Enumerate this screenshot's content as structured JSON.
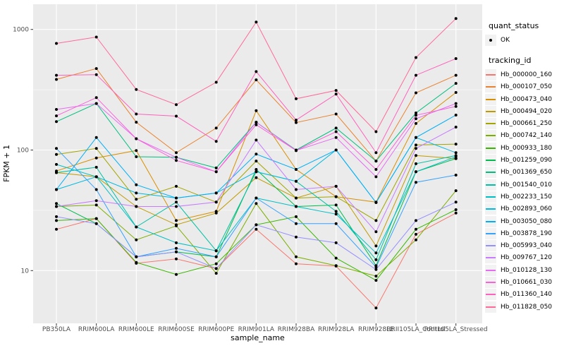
{
  "chart_data": {
    "type": "line",
    "title": "",
    "xlabel": "sample_name",
    "ylabel": "FPKM + 1",
    "y_scale": "log10",
    "ylim": [
      4,
      1400
    ],
    "grid": "on",
    "legend_position": "right",
    "y_ticks": [
      1000,
      100,
      10
    ],
    "y_minor_ticks": [
      316.23,
      31.62
    ],
    "categories": [
      "PB350LA",
      "RRIM600LA",
      "RRIM600LE",
      "RRIM600SE",
      "RRIM600PE",
      "RRIM901LA",
      "RRIM928BA",
      "RRIM928LA",
      "RRIM928LE",
      "RRII105LA_Control",
      "RRII105LA_Stressed"
    ],
    "legend": {
      "quant_status_title": "quant_status",
      "quant_status_value": "OK",
      "tracking_id_title": "tracking_id"
    },
    "colors": {
      "panel_bg": "#EBEBEB",
      "grid": "#FFFFFF",
      "point": "#000000",
      "tick_text": "#4D4D4D",
      "legend_key_bg": "#F2F2F2"
    },
    "series": [
      {
        "name": "Hb_000000_160",
        "color": "#F8766D",
        "values": [
          22,
          27,
          11.5,
          12.5,
          10.4,
          22,
          11.4,
          10.9,
          4.9,
          20,
          30
        ]
      },
      {
        "name": "Hb_000107_050",
        "color": "#EA8331",
        "values": [
          385,
          474,
          170,
          95,
          152,
          382,
          169,
          199,
          81,
          298,
          417
        ]
      },
      {
        "name": "Hb_000473_040",
        "color": "#D89000",
        "values": [
          67,
          86,
          99,
          26,
          31,
          212,
          69,
          41,
          37,
          166,
          300
        ]
      },
      {
        "name": "Hb_000494_020",
        "color": "#C09B00",
        "values": [
          65,
          60,
          34,
          24,
          30,
          59,
          40,
          50,
          16,
          90,
          85
        ]
      },
      {
        "name": "Hb_000661_250",
        "color": "#A3A500",
        "values": [
          92,
          103,
          39,
          50,
          37,
          81,
          40,
          41,
          26,
          110,
          112
        ]
      },
      {
        "name": "Hb_000742_140",
        "color": "#7CAE00",
        "values": [
          34,
          35,
          18,
          23.5,
          9.5,
          36,
          13,
          11,
          9,
          18,
          46
        ]
      },
      {
        "name": "Hb_000933_180",
        "color": "#39B600",
        "values": [
          26,
          27,
          11.7,
          9.3,
          11.4,
          24,
          28,
          12.7,
          8.3,
          22,
          32
        ]
      },
      {
        "name": "Hb_001259_090",
        "color": "#00BB4E",
        "values": [
          36,
          24.5,
          13,
          14.3,
          13,
          69,
          34,
          35,
          11,
          66,
          85
        ]
      },
      {
        "name": "Hb_001369_650",
        "color": "#00BF7D",
        "values": [
          172,
          243,
          88,
          87,
          71,
          170,
          100,
          152,
          81,
          203,
          357
        ]
      },
      {
        "name": "Hb_001540_010",
        "color": "#00C1A3",
        "values": [
          65,
          72,
          23,
          37,
          14.6,
          66,
          55,
          31,
          12.3,
          77,
          90
        ]
      },
      {
        "name": "Hb_002233_150",
        "color": "#00BFC4",
        "values": [
          76,
          60,
          23,
          17,
          14.6,
          40,
          34,
          29.4,
          14,
          66,
          88
        ]
      },
      {
        "name": "Hb_002893_060",
        "color": "#00BAE0",
        "values": [
          47,
          60,
          44,
          40,
          44,
          66,
          55,
          100,
          36.7,
          127,
          95
        ]
      },
      {
        "name": "Hb_003050_080",
        "color": "#00B0F6",
        "values": [
          47,
          127,
          51.5,
          40,
          44,
          92.5,
          69,
          100,
          36.7,
          127,
          195
        ]
      },
      {
        "name": "Hb_003878_190",
        "color": "#35A2FF",
        "values": [
          103,
          47,
          13,
          15.3,
          13,
          40,
          24.5,
          24.5,
          10.7,
          54,
          62
        ]
      },
      {
        "name": "Hb_005993_040",
        "color": "#9590FF",
        "values": [
          28,
          24.5,
          13,
          14.3,
          10.4,
          24,
          19,
          17,
          10.2,
          26,
          37
        ]
      },
      {
        "name": "Hb_009767_120",
        "color": "#C77CFF",
        "values": [
          34,
          38,
          34,
          34,
          37,
          121,
          47,
          50,
          21,
          103,
          155
        ]
      },
      {
        "name": "Hb_010128_130",
        "color": "#E76BF3",
        "values": [
          217,
          243,
          124,
          87,
          66,
          170,
          99,
          127,
          60,
          182,
          243
        ]
      },
      {
        "name": "Hb_010661_030",
        "color": "#FA62DB",
        "values": [
          192,
          272,
          124,
          82,
          66,
          162,
          99,
          142,
          69,
          194,
          230
        ]
      },
      {
        "name": "Hb_011360_140",
        "color": "#FF62BC",
        "values": [
          417,
          422,
          199,
          191,
          118,
          447,
          177,
          291,
          95,
          417,
          573
        ]
      },
      {
        "name": "Hb_011828_050",
        "color": "#FF6A98",
        "values": [
          766,
          865,
          318,
          238,
          365,
          1150,
          266,
          312,
          142,
          585,
          1230
        ]
      }
    ]
  }
}
